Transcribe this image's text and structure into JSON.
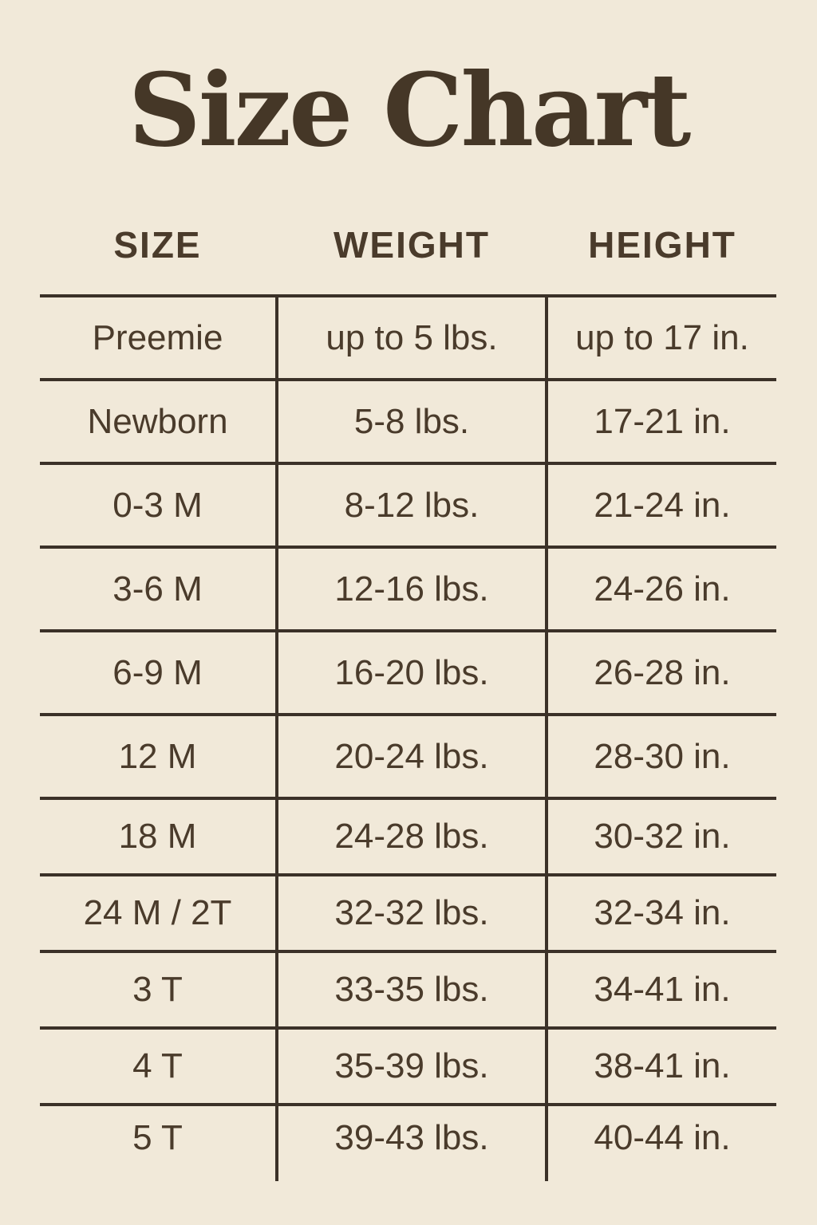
{
  "colors": {
    "background": "#f1e9d9",
    "line_color": "#3b3128",
    "text_color": "#4a3b2b",
    "title_color": "#453727"
  },
  "title": "Size Chart",
  "chart_data": {
    "type": "table",
    "title": "Size Chart",
    "columns": [
      "SIZE",
      "WEIGHT",
      "HEIGHT"
    ],
    "rows": [
      [
        "Preemie",
        "up to 5 lbs.",
        "up to 17 in."
      ],
      [
        "Newborn",
        "5-8 lbs.",
        "17-21 in."
      ],
      [
        "0-3 M",
        "8-12 lbs.",
        "21-24 in."
      ],
      [
        "3-6 M",
        "12-16 lbs.",
        "24-26 in."
      ],
      [
        "6-9 M",
        "16-20 lbs.",
        "26-28 in."
      ],
      [
        "12 M",
        "20-24 lbs.",
        "28-30 in."
      ],
      [
        "18 M",
        "24-28 lbs.",
        "30-32 in."
      ],
      [
        "24 M / 2T",
        "32-32 lbs.",
        "32-34 in."
      ],
      [
        "3 T",
        "33-35 lbs.",
        "34-41 in."
      ],
      [
        "4 T",
        "35-39 lbs.",
        "38-41 in."
      ],
      [
        "5 T",
        "39-43 lbs.",
        "40-44 in."
      ]
    ],
    "layout": {
      "legend": "none",
      "grid": "horizontal-separators-with-column-dividers",
      "outer_border": "none"
    }
  }
}
